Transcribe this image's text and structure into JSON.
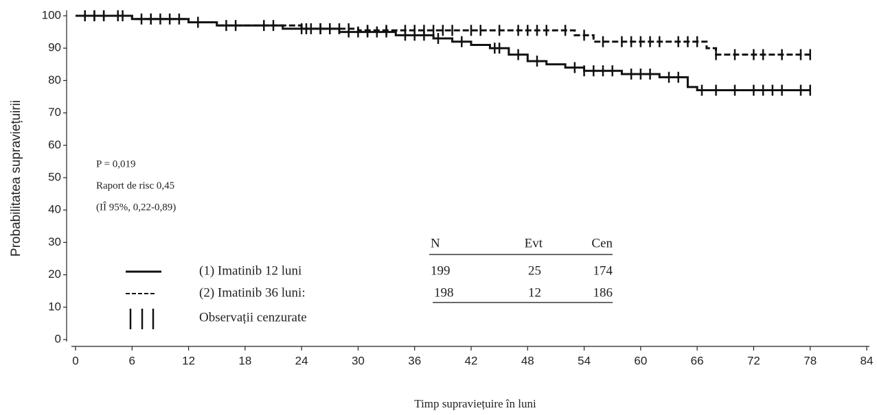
{
  "chart_data": {
    "type": "step",
    "x_label": "Timp supraviețuire în luni",
    "y_label": "Probabilitatea supraviețuirii",
    "xlim": [
      0,
      84
    ],
    "xticks": [
      0,
      6,
      12,
      18,
      24,
      30,
      36,
      42,
      48,
      54,
      60,
      66,
      72,
      78,
      84
    ],
    "ylim": [
      0,
      100
    ],
    "yticks": [
      0,
      10,
      20,
      30,
      40,
      50,
      60,
      70,
      80,
      90,
      100
    ],
    "annotations": [
      "P = 0,019",
      "Raport de risc 0,45",
      "(IÎ 95%, 0,22-0,89)"
    ],
    "series": [
      {
        "name": "(1) Imatinib 12 luni",
        "color": "#111111",
        "dash": "solid",
        "x": [
          0,
          6,
          12,
          15,
          22,
          28,
          34,
          38,
          40,
          42,
          44,
          46,
          48,
          50,
          52,
          54,
          58,
          62,
          65,
          66,
          78
        ],
        "values": [
          100,
          99,
          98,
          97,
          96,
          95,
          94,
          93,
          92,
          91,
          90,
          88,
          86,
          85,
          84,
          83,
          82,
          81,
          78,
          77,
          77
        ],
        "censored": [
          1,
          2,
          3,
          4.5,
          7,
          8,
          10,
          13,
          17,
          21,
          24,
          25,
          26,
          27,
          29,
          30,
          31,
          32,
          33,
          35,
          36,
          37,
          38.5,
          41,
          44.5,
          45,
          47,
          49,
          53,
          54,
          55,
          56,
          57,
          59,
          60,
          61,
          63,
          64,
          66.5,
          68,
          70,
          72,
          73,
          74,
          75,
          77,
          78
        ]
      },
      {
        "name": "(2) Imatinib 36 luni:",
        "color": "#111111",
        "dash": "dashed",
        "x": [
          0,
          6,
          12,
          15,
          24,
          30,
          53,
          55,
          67,
          68,
          78
        ],
        "values": [
          100,
          99,
          98,
          97,
          96,
          95.5,
          94,
          92,
          90,
          88,
          88
        ],
        "censored": [
          1,
          2,
          3,
          5,
          8,
          9,
          11,
          16,
          20,
          24.5,
          26,
          27,
          28,
          29,
          31,
          33,
          35,
          36,
          37,
          38,
          39,
          40,
          42,
          43,
          45,
          47,
          48,
          49,
          50,
          52,
          54,
          56,
          58,
          59,
          60,
          61,
          62,
          64,
          65,
          66,
          68,
          70,
          72,
          73,
          75,
          77,
          78
        ]
      }
    ],
    "censor_label": "Observații cenzurate",
    "summary": {
      "columns": [
        "N",
        "Evt",
        "Cen"
      ],
      "rows": [
        [
          "199",
          "25",
          "174"
        ],
        [
          "198",
          "12",
          "186"
        ]
      ]
    }
  }
}
